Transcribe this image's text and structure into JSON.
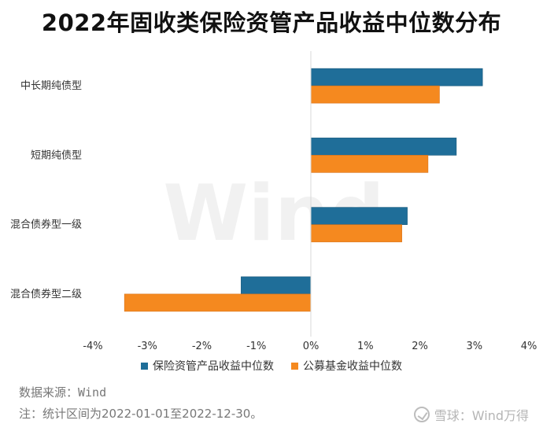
{
  "title": "2022年固收类保险资管产品收益中位数分布",
  "watermark": "Wind",
  "source": "数据来源：Wind",
  "note": "注：统计区间为2022-01-01至2022-12-30。",
  "brand": "雪球：Wind万得",
  "colors": {
    "series1": "#1F6E99",
    "series2": "#F5891F",
    "axis": "#d9d9d9"
  },
  "chart_data": {
    "type": "bar",
    "orientation": "horizontal",
    "title": "2022年固收类保险资管产品收益中位数分布",
    "categories": [
      "中长期纯债型",
      "短期纯债型",
      "混合债券型一级",
      "混合债券型二级"
    ],
    "series": [
      {
        "name": "保险资管产品收益中位数",
        "values": [
          3.15,
          2.67,
          1.77,
          -1.28
        ]
      },
      {
        "name": "公募基金收益中位数",
        "values": [
          2.36,
          2.15,
          1.67,
          -3.42
        ]
      }
    ],
    "xlim": [
      -4,
      4
    ],
    "xticks": [
      "-4%",
      "-3%",
      "-2%",
      "-1%",
      "0%",
      "1%",
      "2%",
      "3%",
      "4%"
    ],
    "xlabel": "",
    "ylabel": "",
    "grid": false,
    "legend": "bottom"
  }
}
